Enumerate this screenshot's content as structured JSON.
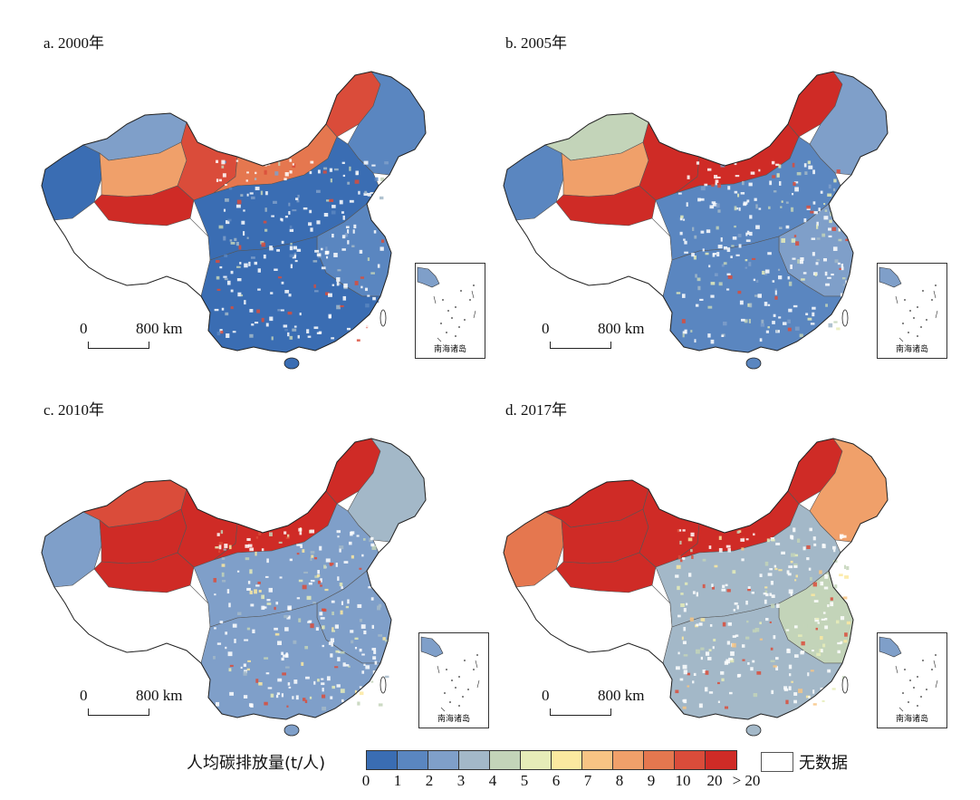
{
  "panels": [
    {
      "title": "a. 2000年",
      "scale_label": "800 km",
      "scale_zero": "0",
      "inset_label": "南海诸岛",
      "region_levels": {
        "west": 0,
        "tibet": -1,
        "xj_south": 11,
        "xj_mid": 8,
        "xj_north": 2,
        "gansu": 10,
        "inner_mongolia": 9,
        "northeast": 1,
        "heilongjiang_north": 10,
        "central": 0,
        "east": 1,
        "south": 0
      }
    },
    {
      "title": "b. 2005年",
      "scale_label": "800 km",
      "scale_zero": "0",
      "inset_label": "南海诸岛",
      "region_levels": {
        "west": 1,
        "tibet": -1,
        "xj_south": 11,
        "xj_mid": 8,
        "xj_north": 4,
        "gansu": 11,
        "inner_mongolia": 11,
        "northeast": 2,
        "heilongjiang_north": 11,
        "central": 1,
        "east": 2,
        "south": 1
      }
    },
    {
      "title": "c. 2010年",
      "scale_label": "800 km",
      "scale_zero": "0",
      "inset_label": "南海诸岛",
      "region_levels": {
        "west": 2,
        "tibet": -1,
        "xj_south": 11,
        "xj_mid": 11,
        "xj_north": 10,
        "gansu": 11,
        "inner_mongolia": 11,
        "northeast": 3,
        "heilongjiang_north": 11,
        "central": 2,
        "east": 2,
        "south": 2
      }
    },
    {
      "title": "d. 2017年",
      "scale_label": "800 km",
      "scale_zero": "0",
      "inset_label": "南海诸岛",
      "region_levels": {
        "west": 9,
        "tibet": -1,
        "xj_south": 11,
        "xj_mid": 11,
        "xj_north": 11,
        "gansu": 11,
        "inner_mongolia": 11,
        "northeast": 8,
        "heilongjiang_north": 11,
        "central": 3,
        "east": 4,
        "south": 3
      }
    }
  ],
  "legend": {
    "title": "人均碳排放量(t/人)",
    "ticks": [
      "0",
      "1",
      "2",
      "3",
      "4",
      "5",
      "6",
      "7",
      "8",
      "9",
      "10",
      "20",
      "> 20"
    ],
    "colors": [
      "#3a6db3",
      "#5a86c0",
      "#7f9fc9",
      "#a3b8c8",
      "#c3d4b9",
      "#e6ecb8",
      "#fbe9a0",
      "#f7c484",
      "#f0a06a",
      "#e5774f",
      "#da4c3a",
      "#cf2b26"
    ],
    "nodata_label": "无数据",
    "nodata_color": "#ffffff"
  }
}
